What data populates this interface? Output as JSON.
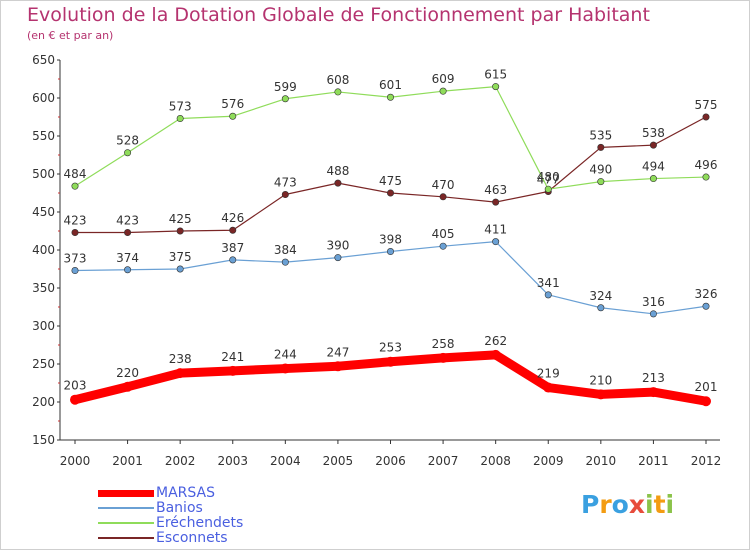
{
  "header": {
    "title": "Evolution de la Dotation Globale de Fonctionnement par Habitant",
    "subtitle": "(en € et par an)"
  },
  "chart_data": {
    "type": "line",
    "categories": [
      "2000",
      "2001",
      "2002",
      "2003",
      "2004",
      "2005",
      "2006",
      "2007",
      "2008",
      "2009",
      "2010",
      "2011",
      "2012"
    ],
    "ylim": [
      150,
      650
    ],
    "yticks": [
      150,
      200,
      250,
      300,
      350,
      400,
      450,
      500,
      550,
      600,
      650
    ],
    "grid": false,
    "series": [
      {
        "name": "MARSAS",
        "color": "#ff0000",
        "values": [
          203,
          220,
          238,
          241,
          244,
          247,
          253,
          258,
          262,
          219,
          210,
          213,
          201
        ]
      },
      {
        "name": "Banios",
        "color": "#6aa0d4",
        "values": [
          373,
          374,
          375,
          387,
          384,
          390,
          398,
          405,
          411,
          341,
          324,
          316,
          326
        ]
      },
      {
        "name": "Eréchendets",
        "color": "#8fdc5a",
        "values": [
          484,
          528,
          573,
          576,
          599,
          608,
          601,
          609,
          615,
          480,
          490,
          494,
          496
        ]
      },
      {
        "name": "Esconnets",
        "color": "#7a2626",
        "values": [
          423,
          423,
          425,
          426,
          473,
          488,
          475,
          470,
          463,
          477,
          535,
          538,
          575
        ]
      }
    ]
  },
  "logo": {
    "letters": [
      "P",
      "r",
      "o",
      "x",
      "i",
      "t",
      "i"
    ],
    "colors": [
      "#3aa0e0",
      "#f39c12",
      "#3aa0e0",
      "#e74c3c",
      "#8bc34a",
      "#f39c12",
      "#8bc34a"
    ]
  }
}
